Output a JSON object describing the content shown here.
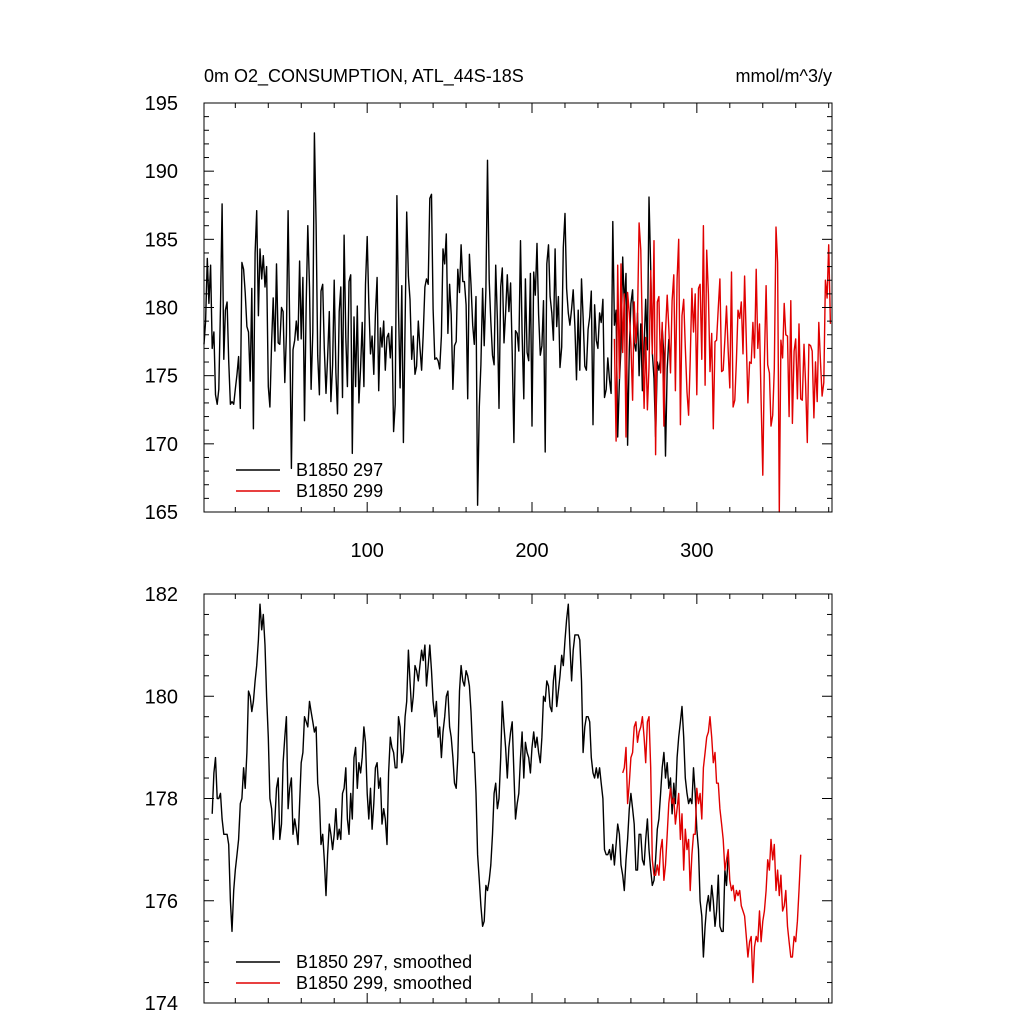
{
  "chart_data": [
    {
      "type": "line",
      "title": "0m O2_CONSUMPTION, ATL_44S-18S",
      "units": "mmol/m^3/y",
      "xlim": [
        1,
        382
      ],
      "ylim": [
        165,
        195
      ],
      "yticks": [
        165,
        170,
        175,
        180,
        185,
        190,
        195
      ],
      "xticks": [
        100,
        200,
        300
      ],
      "legend": "bottom-left",
      "series": [
        {
          "name": "B1850 297",
          "color": "#000000",
          "x_start": 1,
          "values": [
            177.3,
            179.0,
            183.6,
            180.3,
            183.1,
            177.0,
            178.2,
            173.6,
            172.9,
            174.0,
            180.1,
            187.6,
            176.2,
            179.8,
            180.4,
            176.1,
            172.9,
            173.1,
            172.9,
            174.0,
            175.1,
            176.4,
            172.6,
            183.3,
            182.8,
            181.1,
            178.6,
            178.2,
            174.6,
            181.4,
            171.1,
            184.0,
            187.1,
            179.4,
            184.3,
            182.1,
            183.8,
            181.5,
            183.0,
            174.2,
            172.7,
            177.4,
            180.7,
            176.8,
            183.2,
            177.4,
            177.3,
            180.0,
            179.7,
            174.5,
            178.0,
            187.1,
            178.7,
            168.2,
            176.9,
            177.6,
            179.0,
            177.6,
            183.4,
            177.7,
            182.2,
            171.7,
            180.3,
            186.0,
            181.5,
            174.0,
            178.2,
            192.8,
            186.1,
            176.5,
            173.6,
            181.2,
            181.7,
            177.0,
            173.7,
            176.3,
            179.7,
            173.1,
            175.8,
            182.0,
            175.2,
            172.2,
            179.7,
            181.5,
            173.4,
            185.3,
            177.8,
            174.2,
            181.9,
            182.4,
            169.3,
            179.3,
            174.2,
            180.1,
            173.0,
            175.6,
            178.9,
            174.2,
            181.7,
            185.2,
            180.3,
            176.6,
            177.9,
            175.1,
            179.5,
            182.2,
            173.9,
            178.5,
            177.1,
            179.0,
            175.4,
            177.8,
            178.1,
            176.3,
            178.6,
            170.9,
            172.9,
            188.2,
            179.9,
            174.1,
            181.6,
            170.1,
            178.8,
            187.0,
            182.3,
            180.6,
            176.2,
            177.9,
            175.1,
            175.7,
            179.0,
            177.1,
            175.4,
            178.0,
            181.5,
            182.1,
            181.7,
            188.0,
            188.3,
            179.9,
            176.2,
            176.3,
            176.1,
            175.5,
            177.9,
            184.3,
            183.2,
            185.4,
            178.1,
            181.7,
            179.5,
            174.0,
            177.2,
            177.5,
            182.8,
            181.1,
            184.6,
            181.9,
            181.9,
            180.2,
            173.3,
            183.9,
            181.7,
            178.7,
            177.3,
            180.8,
            165.5,
            172.7,
            175.8,
            181.4,
            177.2,
            181.3,
            190.8,
            182.0,
            179.0,
            176.5,
            175.8,
            183.1,
            179.1,
            172.6,
            181.5,
            182.9,
            177.4,
            179.6,
            182.4,
            179.7,
            181.8,
            176.7,
            170.1,
            178.3,
            178.1,
            176.8,
            184.9,
            178.1,
            173.3,
            182.1,
            176.7,
            176.1,
            182.5,
            171.3,
            182.6,
            180.9,
            184.7,
            179.5,
            176.5,
            177.2,
            180.5,
            169.4,
            183.2,
            184.6,
            180.8,
            179.6,
            177.6,
            184.3,
            178.6,
            180.8,
            175.6,
            177.1,
            184.4,
            186.9,
            181.4,
            179.6,
            178.7,
            179.9,
            181.3,
            178.6,
            174.7,
            179.8,
            175.4,
            182.1,
            179.3,
            175.7,
            175.4,
            178.4,
            179.3,
            181.2,
            171.4,
            180.2,
            177.6,
            177.0,
            179.6,
            178.9,
            180.6,
            173.4,
            174.0,
            176.3,
            174.7,
            173.7,
            186.3,
            178.7,
            179.8,
            170.5,
            174.6,
            177.0,
            183.7,
            180.1,
            182.5,
            169.9,
            176.9,
            180.3,
            181.3,
            177.4,
            176.8,
            179.6,
            175.0,
            178.8,
            173.9,
            177.2,
            180.6,
            176.9,
            188.1,
            182.9,
            176.7,
            174.8,
            170.5,
            176.0,
            175.4,
            176.3,
            178.5,
            176.5,
            169.1,
            175.5,
            177.7
          ]
        },
        {
          "name": "B1850 299",
          "color": "#e00000",
          "x_start": 250,
          "values": [
            177.7,
            170.2,
            183.1,
            174.8,
            183.2,
            176.7,
            181.0,
            170.5,
            181.1,
            179.6,
            177.3,
            173.2,
            180.4,
            177.4,
            179.3,
            186.2,
            184.2,
            177.9,
            172.6,
            177.8,
            172.5,
            175.6,
            182.7,
            176.6,
            184.9,
            169.2,
            180.4,
            180.8,
            175.2,
            178.9,
            171.3,
            178.2,
            180.9,
            178.5,
            175.2,
            180.5,
            182.4,
            173.9,
            182.1,
            185.0,
            171.4,
            179.4,
            180.6,
            177.1,
            173.8,
            172.1,
            176.1,
            181.4,
            178.2,
            181.0,
            173.6,
            181.4,
            181.7,
            176.2,
            186.0,
            174.3,
            184.2,
            181.0,
            175.3,
            178.1,
            171.1,
            177.5,
            177.6,
            180.0,
            182.1,
            175.3,
            175.4,
            177.7,
            180.1,
            176.8,
            174.1,
            182.6,
            172.7,
            173.2,
            176.1,
            179.8,
            179.2,
            180.4,
            176.6,
            182.3,
            177.6,
            173.0,
            176.0,
            175.9,
            178.9,
            176.3,
            182.8,
            177.0,
            178.8,
            173.2,
            167.7,
            176.1,
            181.6,
            175.8,
            175.2,
            171.3,
            172.1,
            175.5,
            185.9,
            183.3,
            165.0,
            177.6,
            176.3,
            180.3,
            178.0,
            177.9,
            172.0,
            180.5,
            171.5,
            176.8,
            177.7,
            173.3,
            178.8,
            173.3,
            173.2,
            177.3,
            174.4,
            170.1,
            177.3,
            177.2,
            176.8,
            171.9,
            176.0,
            173.1,
            178.9,
            176.0,
            173.5,
            174.5,
            182.0,
            180.7,
            184.6,
            178.8
          ]
        }
      ]
    },
    {
      "type": "line",
      "xlim": [
        1,
        382
      ],
      "ylim": [
        174,
        182
      ],
      "yticks": [
        174,
        176,
        178,
        180,
        182
      ],
      "xticks": [
        100,
        200,
        300
      ],
      "legend": "bottom-left",
      "series": [
        {
          "name": "B1850 297, smoothed",
          "color": "#000000",
          "x_start": 6,
          "values": [
            177.7,
            178.5,
            178.8,
            178.0,
            178.0,
            178.1,
            177.6,
            177.3,
            177.3,
            177.3,
            177.1,
            176.0,
            175.4,
            176.2,
            176.6,
            176.9,
            177.2,
            177.9,
            178.0,
            178.6,
            178.2,
            178.9,
            180.1,
            180.0,
            179.7,
            179.9,
            180.3,
            180.6,
            181.1,
            181.8,
            181.3,
            181.6,
            181.0,
            180.0,
            179.2,
            178.0,
            177.8,
            177.2,
            177.6,
            178.2,
            178.4,
            177.2,
            177.5,
            178.7,
            179.2,
            179.6,
            177.8,
            178.2,
            178.4,
            177.3,
            177.6,
            177.4,
            177.1,
            177.9,
            178.7,
            178.9,
            179.6,
            179.5,
            179.4,
            179.9,
            179.7,
            179.5,
            179.3,
            179.4,
            178.3,
            178.0,
            177.1,
            177.3,
            176.8,
            176.1,
            176.9,
            177.5,
            177.3,
            177.0,
            177.3,
            177.8,
            177.2,
            177.4,
            177.2,
            178.1,
            178.2,
            178.6,
            177.6,
            177.3,
            178.1,
            177.6,
            178.8,
            179.0,
            178.2,
            178.7,
            178.5,
            178.8,
            179.4,
            179.1,
            178.1,
            177.6,
            178.2,
            177.4,
            177.9,
            178.6,
            178.7,
            178.2,
            178.4,
            177.5,
            177.8,
            177.6,
            177.1,
            178.5,
            179.2,
            179.0,
            178.9,
            178.6,
            178.6,
            179.6,
            179.4,
            178.7,
            178.9,
            179.6,
            179.9,
            180.9,
            180.3,
            179.7,
            180.0,
            180.6,
            180.5,
            180.3,
            180.6,
            180.9,
            180.7,
            181.0,
            180.2,
            180.6,
            181.0,
            180.5,
            179.9,
            179.6,
            179.9,
            179.2,
            179.4,
            178.8,
            179.3,
            179.6,
            180.0,
            180.1,
            179.4,
            179.2,
            178.8,
            178.3,
            178.2,
            178.8,
            180.1,
            180.6,
            180.3,
            180.2,
            180.5,
            180.4,
            180.2,
            179.7,
            178.9,
            178.9,
            178.1,
            176.9,
            176.4,
            175.9,
            175.5,
            175.6,
            176.3,
            176.2,
            176.4,
            176.7,
            177.3,
            178.1,
            178.3,
            177.8,
            178.0,
            178.8,
            179.9,
            179.4,
            179.0,
            178.4,
            179.0,
            179.3,
            179.5,
            178.5,
            177.6,
            177.9,
            178.1,
            178.8,
            179.3,
            178.4,
            179.1,
            178.9,
            178.8,
            178.5,
            179.0,
            179.3,
            179.0,
            179.2,
            178.9,
            178.7,
            179.2,
            180.0,
            179.9,
            180.3,
            180.2,
            179.8,
            179.7,
            180.3,
            180.6,
            179.8,
            180.1,
            180.4,
            180.8,
            180.6,
            181.1,
            181.5,
            181.8,
            181.0,
            180.3,
            180.9,
            181.2,
            181.2,
            181.2,
            181.1,
            180.3,
            178.9,
            179.4,
            179.6,
            179.6,
            179.5,
            178.8,
            178.5,
            178.4,
            178.6,
            178.4,
            178.6,
            178.3,
            178.0,
            177.0,
            176.9,
            176.9,
            177.0,
            176.8,
            177.1,
            176.7,
            177.1,
            177.5,
            177.3,
            176.7,
            176.5,
            176.2,
            176.8,
            177.2,
            177.8,
            178.1,
            177.8,
            177.5,
            176.6,
            176.6,
            177.3,
            177.3,
            176.8,
            176.7,
            177.2,
            177.6,
            177.0,
            176.6,
            176.3,
            176.4,
            176.8,
            177.4,
            177.6,
            178.1,
            178.6,
            178.9,
            178.4,
            178.7,
            178.2,
            178.4,
            177.7,
            178.3,
            177.9,
            178.8,
            179.2,
            179.5,
            179.8,
            179.2,
            178.4,
            178.1,
            177.9,
            178.0,
            177.9,
            178.6,
            178.1,
            177.4,
            177.0,
            176.0,
            175.7,
            174.9,
            175.5,
            175.9,
            176.1,
            175.8,
            176.3,
            176.0,
            175.5,
            175.8,
            176.5,
            175.5,
            175.4,
            175.4,
            176.6,
            176.3,
            176.9
          ]
        },
        {
          "name": "B1850 299, smoothed",
          "color": "#e00000",
          "x_start": 255,
          "values": [
            178.5,
            178.6,
            179.0,
            177.9,
            178.3,
            178.8,
            178.9,
            179.4,
            179.5,
            179.1,
            179.3,
            179.4,
            179.6,
            179.2,
            178.7,
            179.5,
            179.6,
            178.6,
            176.8,
            176.5,
            176.5,
            176.7,
            176.5,
            177.0,
            177.2,
            176.4,
            176.7,
            177.3,
            177.9,
            178.2,
            177.9,
            178.0,
            177.5,
            177.8,
            178.1,
            177.2,
            177.7,
            176.6,
            177.4,
            177.0,
            177.2,
            176.2,
            176.9,
            177.3,
            177.3,
            178.2,
            177.9,
            178.1,
            177.6,
            178.6,
            178.9,
            179.2,
            179.3,
            179.6,
            179.2,
            178.7,
            178.9,
            178.3,
            178.3,
            177.8,
            177.5,
            177.2,
            176.6,
            176.8,
            177.0,
            176.4,
            176.2,
            176.3,
            176.0,
            176.2,
            176.1,
            176.2,
            175.9,
            175.8,
            175.7,
            175.3,
            174.9,
            175.2,
            175.3,
            174.4,
            175.1,
            175.3,
            175.2,
            175.8,
            175.2,
            175.6,
            175.8,
            176.2,
            176.8,
            176.6,
            177.2,
            176.8,
            177.1,
            176.2,
            176.6,
            176.1,
            176.5,
            175.8,
            175.9,
            176.2,
            175.5,
            175.2,
            174.9,
            174.9,
            175.3,
            175.2,
            175.6,
            176.2,
            176.9
          ]
        }
      ]
    }
  ]
}
